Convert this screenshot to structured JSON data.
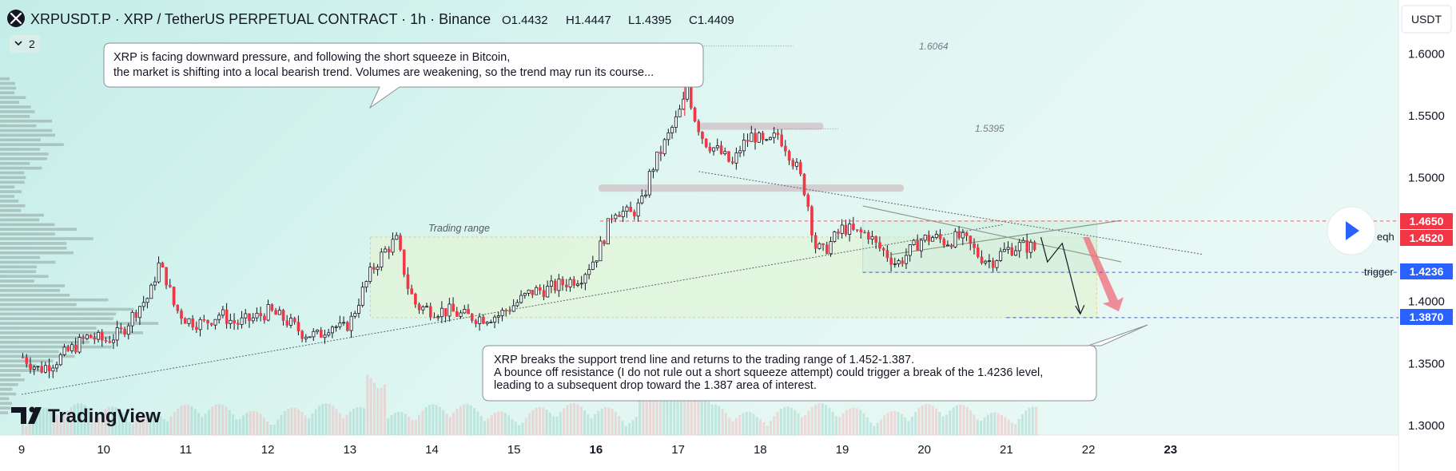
{
  "header": {
    "symbol": "XRPUSDT.P · XRP / TetherUS PERPETUAL CONTRACT · 1h · Binance",
    "open": "O1.4432",
    "high": "H1.4447",
    "low": "L1.4395",
    "close": "C1.4409",
    "indicator_count": "2",
    "currency_button": "USDT"
  },
  "annotations": {
    "top_note": [
      "XRP is facing downward pressure, and following the short squeeze in Bitcoin,",
      "the market is shifting into a local bearish trend. Volumes are weakening, so the trend may run its course..."
    ],
    "bottom_note": [
      "XRP breaks the support trend line and returns to the trading range of 1.452-1.387.",
      "A bounce off resistance (I do not rule out a short squeeze attempt) could trigger a break of the 1.4236 level,",
      "leading to a subsequent drop toward the 1.387 area of interest."
    ],
    "trading_range": "Trading range",
    "high_marker": "1.6064",
    "resistance_marker": "1.5395",
    "eqh": "eqh",
    "trigger": "trigger"
  },
  "price_tags": {
    "tag_1": "1.4650",
    "tag_2": "1.4520",
    "tag_3": "1.4236",
    "tag_4": "1.3870"
  },
  "brand": "TradingView",
  "colors": {
    "up": "#089981",
    "down": "#f23645",
    "range_fill": "#e3f5d8",
    "accent_blue": "#2962ff",
    "red_tag": "#f23645"
  },
  "chart_data": {
    "type": "candlestick",
    "symbol": "XRPUSDT.P",
    "timeframe": "1h",
    "x_ticks": [
      "9",
      "10",
      "11",
      "12",
      "13",
      "14",
      "15",
      "16",
      "17",
      "18",
      "19",
      "20",
      "21",
      "22",
      "23"
    ],
    "y_ticks": [
      "1.6000",
      "1.5500",
      "1.5000",
      "1.4500",
      "1.4000",
      "1.3500",
      "1.3000"
    ],
    "ylim": [
      1.292,
      1.622
    ],
    "xlim": [
      8.87,
      23.4
    ],
    "levels": {
      "trading_range_top": 1.452,
      "trading_range_bottom": 1.387,
      "eqh": 1.465,
      "trigger": 1.4236,
      "target": 1.387,
      "high": 1.6064,
      "resistance": 1.5395
    },
    "close_path": [
      [
        9.0,
        1.355
      ],
      [
        9.2,
        1.345
      ],
      [
        9.4,
        1.352
      ],
      [
        9.6,
        1.362
      ],
      [
        9.8,
        1.372
      ],
      [
        10.0,
        1.368
      ],
      [
        10.2,
        1.375
      ],
      [
        10.4,
        1.395
      ],
      [
        10.55,
        1.405
      ],
      [
        10.65,
        1.43
      ],
      [
        10.75,
        1.418
      ],
      [
        10.85,
        1.395
      ],
      [
        11.0,
        1.385
      ],
      [
        11.2,
        1.382
      ],
      [
        11.4,
        1.39
      ],
      [
        11.6,
        1.382
      ],
      [
        11.8,
        1.386
      ],
      [
        12.0,
        1.392
      ],
      [
        12.2,
        1.385
      ],
      [
        12.4,
        1.375
      ],
      [
        12.6,
        1.372
      ],
      [
        12.75,
        1.382
      ],
      [
        12.9,
        1.377
      ],
      [
        13.0,
        1.385
      ],
      [
        13.1,
        1.402
      ],
      [
        13.25,
        1.425
      ],
      [
        13.4,
        1.44
      ],
      [
        13.55,
        1.45
      ],
      [
        13.62,
        1.432
      ],
      [
        13.7,
        1.41
      ],
      [
        13.8,
        1.396
      ],
      [
        14.0,
        1.393
      ],
      [
        14.2,
        1.392
      ],
      [
        14.4,
        1.388
      ],
      [
        14.6,
        1.387
      ],
      [
        14.8,
        1.389
      ],
      [
        15.0,
        1.398
      ],
      [
        15.2,
        1.408
      ],
      [
        15.4,
        1.41
      ],
      [
        15.6,
        1.415
      ],
      [
        15.8,
        1.42
      ],
      [
        16.0,
        1.438
      ],
      [
        16.1,
        1.455
      ],
      [
        16.2,
        1.475
      ],
      [
        16.4,
        1.47
      ],
      [
        16.55,
        1.48
      ],
      [
        16.65,
        1.505
      ],
      [
        16.8,
        1.525
      ],
      [
        16.95,
        1.545
      ],
      [
        17.05,
        1.56
      ],
      [
        17.1,
        1.59
      ],
      [
        17.15,
        1.555
      ],
      [
        17.3,
        1.53
      ],
      [
        17.5,
        1.52
      ],
      [
        17.65,
        1.51
      ],
      [
        17.75,
        1.525
      ],
      [
        17.9,
        1.535
      ],
      [
        18.05,
        1.525
      ],
      [
        18.2,
        1.535
      ],
      [
        18.3,
        1.525
      ],
      [
        18.45,
        1.505
      ],
      [
        18.55,
        1.485
      ],
      [
        18.65,
        1.445
      ],
      [
        18.75,
        1.44
      ],
      [
        18.9,
        1.452
      ],
      [
        19.0,
        1.46
      ],
      [
        19.15,
        1.455
      ],
      [
        19.3,
        1.455
      ],
      [
        19.4,
        1.445
      ],
      [
        19.5,
        1.44
      ],
      [
        19.65,
        1.43
      ],
      [
        19.8,
        1.44
      ],
      [
        19.95,
        1.45
      ],
      [
        20.1,
        1.452
      ],
      [
        20.25,
        1.448
      ],
      [
        20.4,
        1.452
      ],
      [
        20.5,
        1.448
      ],
      [
        20.65,
        1.437
      ],
      [
        20.8,
        1.432
      ],
      [
        20.9,
        1.438
      ],
      [
        21.0,
        1.442
      ],
      [
        21.15,
        1.445
      ],
      [
        21.3,
        1.444
      ],
      [
        21.35,
        1.441
      ]
    ],
    "projection": [
      [
        21.42,
        1.452
      ],
      [
        21.5,
        1.432
      ],
      [
        21.68,
        1.447
      ],
      [
        21.9,
        1.39
      ]
    ],
    "volume_profile": "horizontal histogram on left edge, heaviest around 1.36-1.40"
  }
}
